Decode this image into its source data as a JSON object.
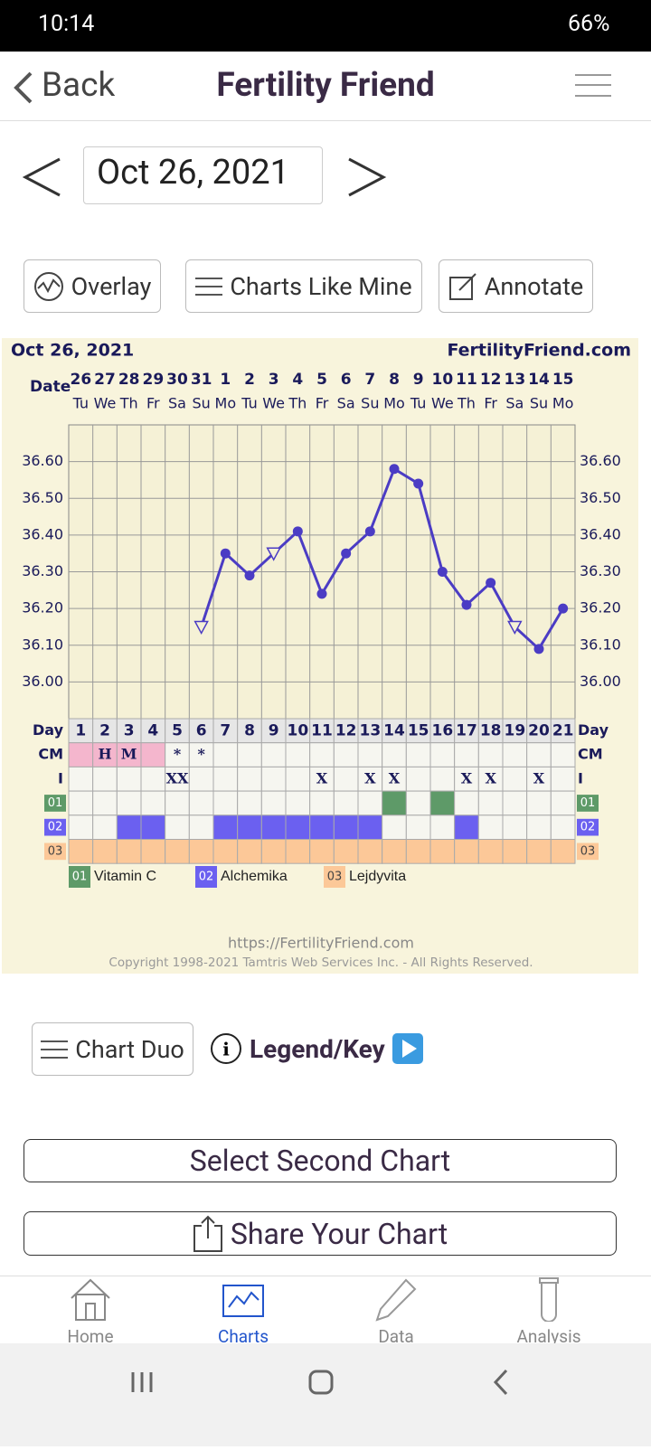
{
  "status_bar": {
    "time": "10:14",
    "battery": "66%"
  },
  "header": {
    "back": "Back",
    "title": "Fertility Friend"
  },
  "date_nav": {
    "date": "Oct 26, 2021"
  },
  "toolbar": [
    "Overlay",
    "Charts Like Mine",
    "Annotate"
  ],
  "chart_data": {
    "type": "line",
    "title": "Oct 26, 2021",
    "site": "FertilityFriend.com",
    "date_axis_label": "Date",
    "dates": [
      26,
      27,
      28,
      29,
      30,
      31,
      1,
      2,
      3,
      4,
      5,
      6,
      7,
      8,
      9,
      10,
      11,
      12,
      13,
      14,
      15
    ],
    "weekdays": [
      "Tu",
      "We",
      "Th",
      "Fr",
      "Sa",
      "Su",
      "Mo",
      "Tu",
      "We",
      "Th",
      "Fr",
      "Sa",
      "Su",
      "Mo",
      "Tu",
      "We",
      "Th",
      "Fr",
      "Sa",
      "Su",
      "Mo"
    ],
    "day_label": "Day",
    "categories": [
      1,
      2,
      3,
      4,
      5,
      6,
      7,
      8,
      9,
      10,
      11,
      12,
      13,
      14,
      15,
      16,
      17,
      18,
      19,
      20,
      21
    ],
    "series": [
      {
        "color": "#4b3cc4",
        "values": [
          null,
          null,
          null,
          null,
          null,
          36.15,
          36.35,
          36.29,
          36.35,
          36.41,
          36.24,
          36.35,
          36.41,
          36.58,
          36.54,
          36.3,
          36.21,
          36.27,
          36.15,
          36.09,
          36.2
        ],
        "markers": [
          null,
          null,
          null,
          null,
          null,
          "triangle",
          "circle",
          "circle",
          "triangle",
          "circle",
          "circle",
          "circle",
          "circle",
          "circle",
          "circle",
          "circle",
          "circle",
          "circle",
          "triangle",
          "circle",
          "circle"
        ]
      }
    ],
    "ylim": [
      35.9,
      36.7
    ],
    "yticks": [
      {
        "value": 36,
        "label": "36.00"
      },
      {
        "value": 36.1,
        "label": "36.10"
      },
      {
        "value": 36.2,
        "label": "36.20"
      },
      {
        "value": 36.3,
        "label": "36.30"
      },
      {
        "value": 36.4,
        "label": "36.40"
      },
      {
        "value": 36.5,
        "label": "36.50"
      },
      {
        "value": 36.6,
        "label": "36.60"
      }
    ],
    "grid": true,
    "cm": {
      "label": "CM",
      "shade_color": "#f4b6cd",
      "values": [
        null,
        "H",
        "M",
        null,
        "*",
        "*",
        null,
        null,
        null,
        null,
        null,
        null,
        null,
        null,
        null,
        null,
        null,
        null,
        null,
        null,
        null
      ],
      "shaded": [
        true,
        true,
        true,
        true,
        false,
        false,
        false,
        false,
        false,
        false,
        false,
        false,
        false,
        false,
        false,
        false,
        false,
        false,
        false,
        false,
        false
      ]
    },
    "intercourse": {
      "label": "I",
      "values": [
        null,
        null,
        null,
        null,
        "XX",
        null,
        null,
        null,
        null,
        null,
        "X",
        null,
        "X",
        "X",
        null,
        null,
        "X",
        "X",
        null,
        "X",
        null
      ]
    },
    "supplements": [
      {
        "code": "01",
        "name": "Vitamin C",
        "color": "#5e9a68",
        "marked": [
          false,
          false,
          false,
          false,
          false,
          false,
          false,
          false,
          false,
          false,
          false,
          false,
          false,
          true,
          false,
          true,
          false,
          false,
          false,
          false,
          false
        ]
      },
      {
        "code": "02",
        "name": "Alchemika",
        "color": "#6b60f0",
        "marked": [
          false,
          false,
          true,
          true,
          false,
          false,
          true,
          true,
          true,
          true,
          true,
          true,
          true,
          false,
          false,
          false,
          true,
          false,
          false,
          false,
          false
        ]
      },
      {
        "code": "03",
        "name": "Lejdyvita",
        "color": "#fcc898",
        "marked": [
          true,
          true,
          true,
          true,
          true,
          true,
          true,
          true,
          true,
          true,
          true,
          true,
          true,
          true,
          true,
          true,
          true,
          true,
          true,
          true,
          true
        ]
      }
    ],
    "footer_url": "https://FertilityFriend.com",
    "copyright": "Copyright 1998-2021 Tamtris Web Services Inc. - All Rights Reserved."
  },
  "actions": {
    "chart_duo": "Chart Duo",
    "legend": "Legend/Key",
    "select": "Select Second Chart",
    "share": "Share Your Chart"
  },
  "nav": [
    "Home",
    "Charts",
    "Data",
    "Analysis"
  ]
}
